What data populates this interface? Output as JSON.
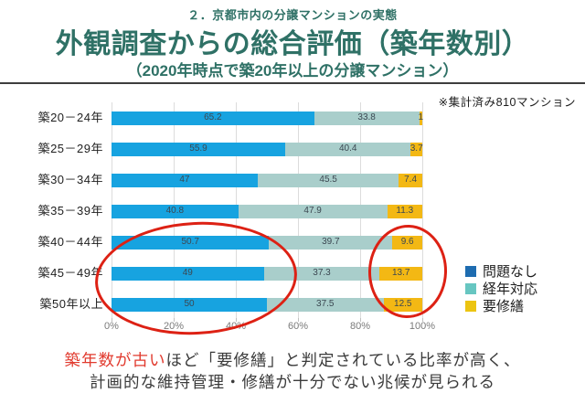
{
  "header": {
    "kicker": "２．京都市内の分譲マンションの実態",
    "title": "外観調査からの総合評価（築年数別）",
    "subtitle": "（2020年時点で築20年以上の分譲マンション）"
  },
  "note": "※集計済み810マンション",
  "chart_data": {
    "type": "bar",
    "orientation": "horizontal",
    "stacked": true,
    "unit": "percent",
    "title": "外観調査からの総合評価（築年数別）",
    "categories": [
      "築20－24年",
      "築25－29年",
      "築30－34年",
      "築35－39年",
      "築40－44年",
      "築45－49年",
      "築50年以上"
    ],
    "series": [
      {
        "name": "問題なし",
        "bar_color": "#17a3e0",
        "legend_color": "#1e6cb0",
        "values": [
          65.2,
          55.9,
          47,
          40.8,
          50.7,
          49,
          50
        ]
      },
      {
        "name": "経年対応",
        "bar_color": "#a9cecb",
        "legend_color": "#67c6c1",
        "values": [
          33.8,
          40.4,
          45.5,
          47.9,
          39.7,
          37.3,
          37.5
        ]
      },
      {
        "name": "要修繕",
        "bar_color": "#f3b814",
        "legend_color": "#ecc411",
        "values": [
          1,
          3.7,
          7.4,
          11.3,
          9.6,
          13.7,
          12.5
        ]
      }
    ],
    "x_ticks": [
      "0%",
      "20%",
      "40%",
      "60%",
      "80%",
      "100%"
    ],
    "xlim": [
      0,
      100
    ],
    "grid": true,
    "legend_position": "right",
    "annotations": [
      "hand-drawn red ellipse circling the 問題なし segments of the three oldest categories (築40－44年, 築45－49年, 築50年以上)",
      "hand-drawn red ellipse circling the 要修繕 segments of the three oldest categories"
    ]
  },
  "caption": {
    "highlight": "築年数が古い",
    "line1_rest": "ほど「要修繕」と判定されている比率が高く、",
    "line2": "計画的な維持管理・修繕が十分でない兆候が見られる"
  },
  "colors": {
    "header_text": "#2f7166",
    "divider": "#3d3d3d",
    "grid": "#dcdcdc",
    "axis_text": "#7a7a7a",
    "data_label": "#3c4852",
    "caption_text": "#3b3b3b",
    "caption_highlight": "#e13a2e",
    "annotation_red": "#dd2114"
  }
}
